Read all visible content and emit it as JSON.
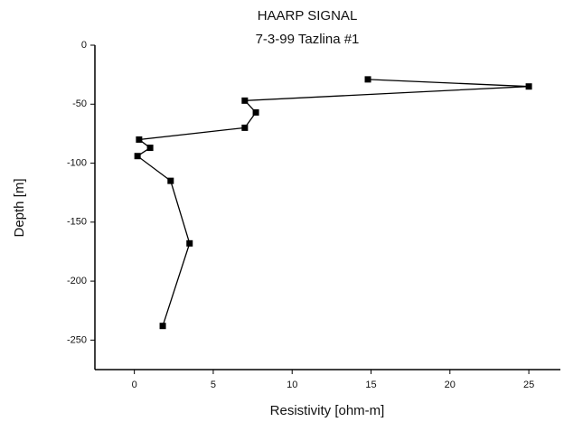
{
  "chart_data": {
    "type": "line",
    "title": "HAARP SIGNAL",
    "subtitle": "7-3-99 Tazlina #1",
    "x_label": "Resistivity [ohm-m]",
    "y_label": "Depth [m]",
    "x": [
      14.8,
      25,
      7,
      7.7,
      7,
      0.3,
      1,
      0.2,
      2.3,
      3.5,
      1.8
    ],
    "series": [
      {
        "name": "HAARP SIGNAL",
        "color": "#000000",
        "values": [
          -29,
          -35,
          -47,
          -57,
          -70,
          -80,
          -87,
          -94,
          -115,
          -168,
          -238
        ]
      }
    ],
    "xlim": [
      -2.5,
      27
    ],
    "xticks": [
      0,
      5,
      10,
      15,
      20,
      25
    ],
    "ylim": [
      -275,
      0
    ],
    "yticks": [
      0,
      -50,
      -100,
      -150,
      -200,
      -250
    ]
  }
}
